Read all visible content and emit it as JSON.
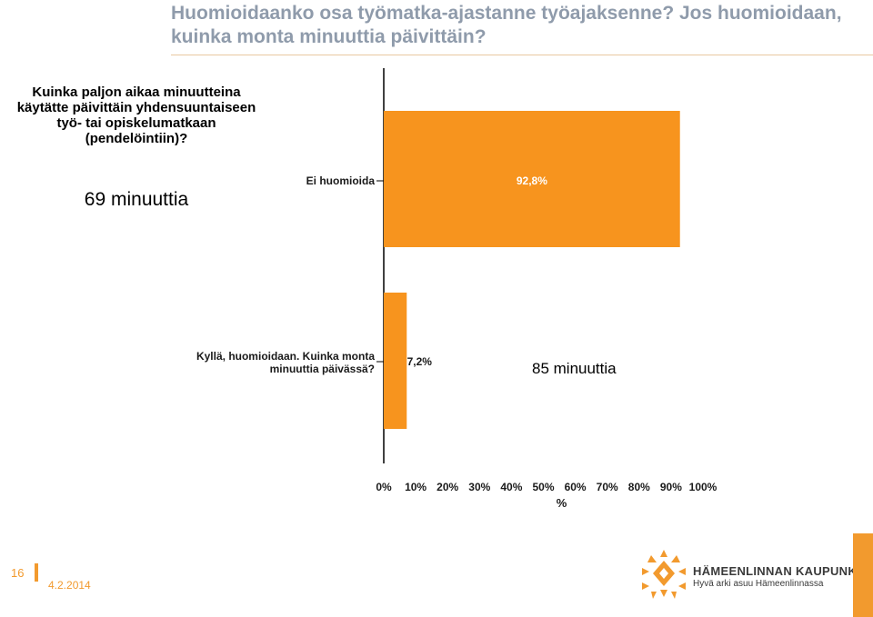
{
  "slide": {
    "title": "Huomioidaanko osa työmatka-ajastanne työajaksenne? Jos huomioidaan, kuinka monta minuuttia päivittäin?",
    "question": "Kuinka paljon aikaa minuutteina käytätte päivittäin yhdensuuntaiseen työ- tai opiskelumatkaan (pendelöintiin)?",
    "answer_left": "69 minuuttia",
    "answer_right": "85 minuuttia",
    "page_number": "16",
    "date": "4.2.2014",
    "logo_name": "HÄMEENLINNAN KAUPUNKI",
    "logo_tagline": "Hyvä arki asuu Hämeenlinnassa",
    "logo_icon": "hameenlinna-crown-icon"
  },
  "colors": {
    "bar": "#f7941e",
    "title": "#8f9bab",
    "accent": "#f29a2e"
  },
  "chart_data": {
    "type": "bar",
    "orientation": "horizontal",
    "categories": [
      "Ei huomioida",
      "Kyllä, huomioidaan. Kuinka monta minuuttia päivässä?"
    ],
    "values": [
      92.8,
      7.2
    ],
    "value_labels": [
      "92,8%",
      "7,2%"
    ],
    "xlabel": "%",
    "xlim": [
      0,
      100
    ],
    "ticks": [
      "0%",
      "10%",
      "20%",
      "30%",
      "40%",
      "50%",
      "60%",
      "70%",
      "80%",
      "90%",
      "100%"
    ],
    "grid": false,
    "legend": "none"
  }
}
